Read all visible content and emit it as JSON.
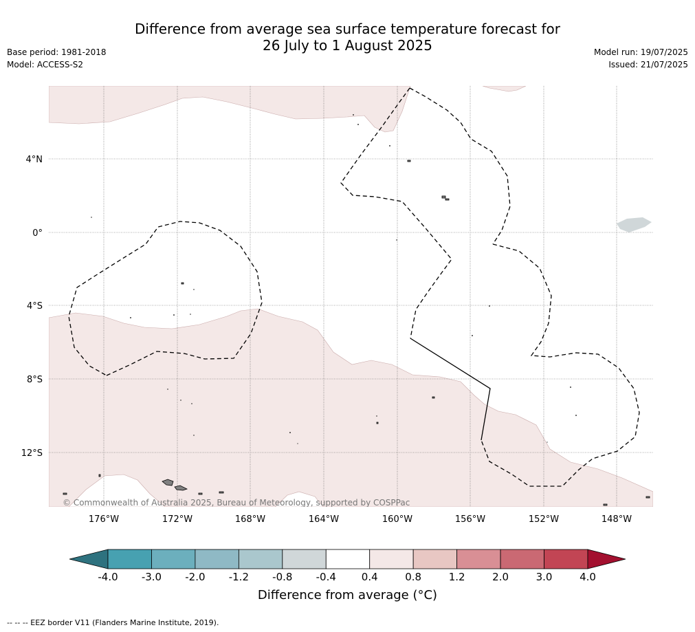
{
  "header": {
    "title_line1": "Difference from average sea surface temperature forecast for",
    "title_line2": "26 July to 1 August 2025",
    "base_period": "Base period: 1981-2018",
    "model": "Model: ACCESS-S2",
    "model_run": "Model run: 19/07/2025",
    "issued": "Issued: 21/07/2025"
  },
  "map": {
    "lat_labels": [
      "4°N",
      "0°",
      "4°S",
      "8°S",
      "12°S"
    ],
    "lon_labels": [
      "176°W",
      "172°W",
      "168°W",
      "164°W",
      "160°W",
      "156°W",
      "152°W",
      "148°W"
    ],
    "copyright": "© Commonwealth of Australia 2025, Bureau of Meteorology, supported by COSPPac",
    "colors": {
      "warm_0_4_0_8": "#f4e8e7",
      "cool_neg0_8_neg0_4": "#d0d7d9",
      "land": "#808080",
      "grid": "#555555"
    }
  },
  "colorbar": {
    "ticks": [
      "-4.0",
      "-3.0",
      "-2.0",
      "-1.2",
      "-0.8",
      "-0.4",
      "0.4",
      "0.8",
      "1.2",
      "2.0",
      "3.0",
      "4.0"
    ],
    "bin_colors": [
      "#2e727f",
      "#47a1b1",
      "#6cafbd",
      "#8fb9c5",
      "#aac7cd",
      "#d0d7d9",
      "#ffffff",
      "#f4e8e7",
      "#e8c7c3",
      "#d98f95",
      "#ca6973",
      "#c24554",
      "#a3102f"
    ],
    "title": "Difference from average (°C)"
  },
  "footer": {
    "legend": "--  --  -- EEZ border V11 (Flanders Marine Institute, 2019)."
  }
}
